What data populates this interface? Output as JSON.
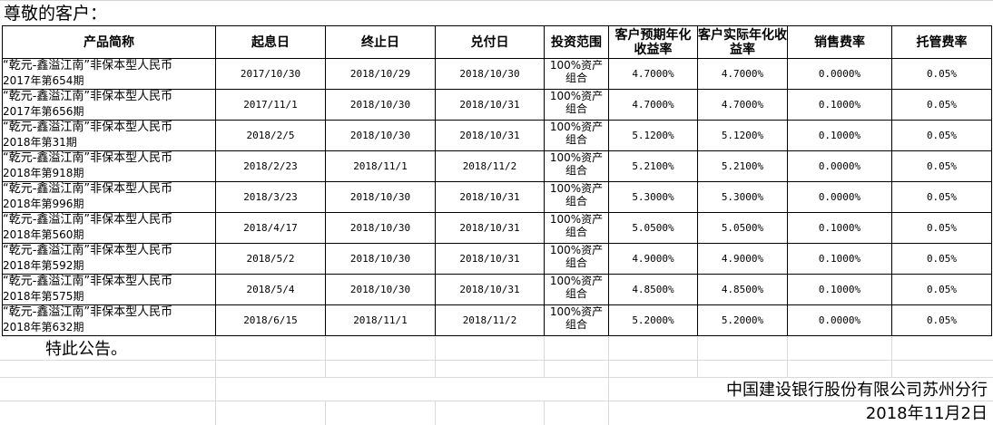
{
  "greeting": "尊敬的客户：",
  "headers": [
    "产品简称",
    "起息日",
    "终止日",
    "兑付日",
    "投资范围",
    "客户预期年化收益率",
    "客户实际年化收益率",
    "销售费率",
    "托管费率"
  ],
  "rows": [
    {
      "name1": "“乾元-鑫溢江南”非保本型人民币",
      "name2": "2017年第654期",
      "start": "2017/10/30",
      "end": "2018/10/29",
      "pay": "2018/10/30",
      "scope1": "100%资产",
      "scope2": "组合",
      "expected": "4.7000%",
      "actual": "4.7000%",
      "sales": "0.0000%",
      "custody": "0.05%"
    },
    {
      "name1": "“乾元-鑫溢江南”非保本型人民币",
      "name2": "2017年第656期",
      "start": "2017/11/1",
      "end": "2018/10/30",
      "pay": "2018/10/31",
      "scope1": "100%资产",
      "scope2": "组合",
      "expected": "4.7000%",
      "actual": "4.7000%",
      "sales": "0.1000%",
      "custody": "0.05%"
    },
    {
      "name1": "“乾元-鑫溢江南”非保本型人民币",
      "name2": "2018年第31期",
      "start": "2018/2/5",
      "end": "2018/10/30",
      "pay": "2018/10/31",
      "scope1": "100%资产",
      "scope2": "组合",
      "expected": "5.1200%",
      "actual": "5.1200%",
      "sales": "0.1000%",
      "custody": "0.05%"
    },
    {
      "name1": "“乾元-鑫溢江南”非保本型人民币",
      "name2": "2018年第918期",
      "start": "2018/2/23",
      "end": "2018/11/1",
      "pay": "2018/11/2",
      "scope1": "100%资产",
      "scope2": "组合",
      "expected": "5.2100%",
      "actual": "5.2100%",
      "sales": "0.0000%",
      "custody": "0.05%"
    },
    {
      "name1": "“乾元-鑫溢江南”非保本型人民币",
      "name2": "2018年第996期",
      "start": "2018/3/23",
      "end": "2018/10/30",
      "pay": "2018/10/31",
      "scope1": "100%资产",
      "scope2": "组合",
      "expected": "5.3000%",
      "actual": "5.3000%",
      "sales": "0.0000%",
      "custody": "0.05%"
    },
    {
      "name1": "“乾元-鑫溢江南”非保本型人民币",
      "name2": "2018年第560期",
      "start": "2018/4/17",
      "end": "2018/10/30",
      "pay": "2018/10/31",
      "scope1": "100%资产",
      "scope2": "组合",
      "expected": "5.0500%",
      "actual": "5.0500%",
      "sales": "0.1000%",
      "custody": "0.05%"
    },
    {
      "name1": "“乾元-鑫溢江南”非保本型人民币",
      "name2": "2018年第592期",
      "start": "2018/5/2",
      "end": "2018/10/30",
      "pay": "2018/10/31",
      "scope1": "100%资产",
      "scope2": "组合",
      "expected": "4.9000%",
      "actual": "4.9000%",
      "sales": "0.1000%",
      "custody": "0.05%"
    },
    {
      "name1": "“乾元-鑫溢江南”非保本型人民币",
      "name2": "2018年第575期",
      "start": "2018/5/4",
      "end": "2018/10/30",
      "pay": "2018/10/31",
      "scope1": "100%资产",
      "scope2": "组合",
      "expected": "4.8500%",
      "actual": "4.8500%",
      "sales": "0.1000%",
      "custody": "0.05%"
    },
    {
      "name1": "“乾元-鑫溢江南”非保本型人民币",
      "name2": "2018年第632期",
      "start": "2018/6/15",
      "end": "2018/11/1",
      "pay": "2018/11/2",
      "scope1": "100%资产",
      "scope2": "组合",
      "expected": "5.2000%",
      "actual": "5.2000%",
      "sales": "0.0000%",
      "custody": "0.05%"
    }
  ],
  "footer": {
    "notice": "特此公告。",
    "issuer": "中国建设银行股份有限公司苏州分行",
    "date": "2018年11月2日"
  }
}
